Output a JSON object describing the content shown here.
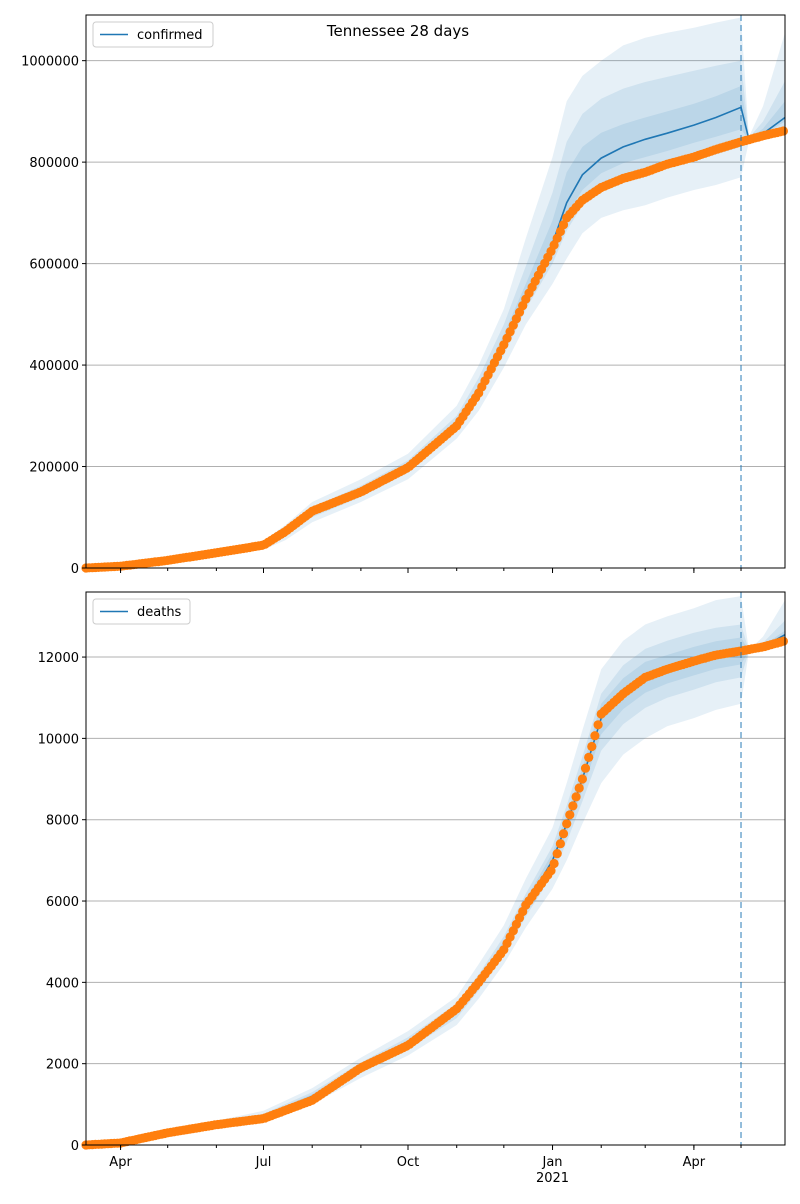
{
  "figure_title": "Tennessee 28 days",
  "colors": {
    "model": "#1f77b4",
    "observed": "#ff7f0e",
    "band": "#1f77b4",
    "grid": "#b0b0b0",
    "forecast_line": "#1f77b4"
  },
  "chart_data": [
    {
      "type": "line",
      "title": "Tennessee 28 days",
      "legend_label": "confirmed",
      "legend_position": "top-left",
      "grid": "horizontal",
      "xlim": [
        "2020-03-10",
        "2021-05-29"
      ],
      "ylim": [
        0,
        1090000
      ],
      "yticks": [
        0,
        200000,
        400000,
        600000,
        800000,
        1000000
      ],
      "ytick_labels": [
        "0",
        "200000",
        "400000",
        "600000",
        "800000",
        "1000000"
      ],
      "xticks": [
        "2020-04-01",
        "2020-07-01",
        "2020-10-01",
        "2021-01-01",
        "2021-04-01"
      ],
      "xtick_labels": [],
      "forecast_start": "2021-05-01",
      "model_x": [
        "2020-03-10",
        "2020-04-01",
        "2020-05-01",
        "2020-06-01",
        "2020-07-01",
        "2020-07-15",
        "2020-08-01",
        "2020-09-01",
        "2020-10-01",
        "2020-11-01",
        "2020-11-15",
        "2020-12-01",
        "2020-12-15",
        "2021-01-01",
        "2021-01-10",
        "2021-01-20",
        "2021-02-01",
        "2021-02-15",
        "2021-03-01",
        "2021-03-15",
        "2021-04-01",
        "2021-04-15",
        "2021-05-01",
        "2021-05-06",
        "2021-05-15",
        "2021-05-29"
      ],
      "model_y": [
        0,
        4000,
        15000,
        30000,
        45000,
        70000,
        110000,
        150000,
        200000,
        285000,
        350000,
        445000,
        535000,
        640000,
        720000,
        775000,
        808000,
        830000,
        845000,
        857000,
        873000,
        888000,
        908000,
        845000,
        856000,
        888000
      ],
      "bands": [
        {
          "level": "outer",
          "lower": [
            0,
            3000,
            12000,
            24000,
            36000,
            55000,
            90000,
            130000,
            175000,
            255000,
            310000,
            395000,
            480000,
            560000,
            610000,
            660000,
            690000,
            705000,
            715000,
            730000,
            745000,
            755000,
            770000,
            840000,
            848000,
            860000
          ],
          "upper": [
            0,
            5000,
            18000,
            36000,
            54000,
            85000,
            130000,
            175000,
            225000,
            320000,
            400000,
            510000,
            650000,
            810000,
            920000,
            970000,
            1000000,
            1030000,
            1045000,
            1055000,
            1065000,
            1075000,
            1085000,
            850000,
            910000,
            1055000
          ]
        },
        {
          "level": "middle",
          "lower": [
            0,
            3500,
            13500,
            27000,
            40000,
            62000,
            100000,
            140000,
            188000,
            270000,
            330000,
            420000,
            510000,
            600000,
            665000,
            715000,
            745000,
            765000,
            775000,
            790000,
            805000,
            815000,
            830000,
            842000,
            852000,
            872000
          ],
          "upper": [
            0,
            4500,
            16500,
            33000,
            50000,
            78000,
            120000,
            162000,
            212000,
            300000,
            375000,
            480000,
            595000,
            740000,
            840000,
            895000,
            925000,
            945000,
            958000,
            968000,
            980000,
            990000,
            1000000,
            848000,
            880000,
            960000
          ]
        },
        {
          "level": "inner",
          "lower": [
            0,
            3800,
            14500,
            28500,
            42500,
            66000,
            105000,
            145000,
            194000,
            278000,
            340000,
            432000,
            522000,
            620000,
            695000,
            745000,
            778000,
            798000,
            810000,
            822000,
            838000,
            850000,
            865000,
            844000,
            854000,
            880000
          ],
          "upper": [
            0,
            4200,
            15500,
            31500,
            47500,
            74000,
            115000,
            155000,
            206000,
            292000,
            360000,
            460000,
            560000,
            685000,
            780000,
            830000,
            858000,
            875000,
            888000,
            900000,
            915000,
            930000,
            950000,
            846000,
            866000,
            920000
          ]
        }
      ],
      "observed_x": [
        "2020-03-10",
        "2020-04-01",
        "2020-05-01",
        "2020-06-01",
        "2020-07-01",
        "2020-07-15",
        "2020-08-01",
        "2020-09-01",
        "2020-10-01",
        "2020-11-01",
        "2020-11-15",
        "2020-12-01",
        "2020-12-15",
        "2021-01-01",
        "2021-01-10",
        "2021-01-20",
        "2021-02-01",
        "2021-02-15",
        "2021-03-01",
        "2021-03-15",
        "2021-04-01",
        "2021-04-15",
        "2021-05-01",
        "2021-05-15",
        "2021-05-29"
      ],
      "observed_y": [
        0,
        3500,
        15000,
        30000,
        45000,
        72000,
        112000,
        150000,
        198000,
        280000,
        345000,
        440000,
        530000,
        630000,
        690000,
        725000,
        750000,
        768000,
        780000,
        796000,
        810000,
        825000,
        840000,
        852000,
        862000
      ]
    },
    {
      "type": "line",
      "legend_label": "deaths",
      "legend_position": "top-left",
      "grid": "horizontal",
      "xlim": [
        "2020-03-10",
        "2021-05-29"
      ],
      "ylim": [
        0,
        13600
      ],
      "yticks": [
        0,
        2000,
        4000,
        6000,
        8000,
        10000,
        12000
      ],
      "ytick_labels": [
        "0",
        "2000",
        "4000",
        "6000",
        "8000",
        "10000",
        "12000"
      ],
      "xticks": [
        "2020-04-01",
        "2020-07-01",
        "2020-10-01",
        "2021-01-01",
        "2021-04-01"
      ],
      "xtick_labels": [
        "Apr",
        "Jul",
        "Oct",
        "Jan",
        "Apr"
      ],
      "year_label": "2021",
      "forecast_start": "2021-05-01",
      "model_x": [
        "2020-03-10",
        "2020-04-01",
        "2020-05-01",
        "2020-06-01",
        "2020-07-01",
        "2020-08-01",
        "2020-09-01",
        "2020-10-01",
        "2020-11-01",
        "2020-11-15",
        "2020-12-01",
        "2020-12-15",
        "2021-01-01",
        "2021-01-10",
        "2021-01-20",
        "2021-02-01",
        "2021-02-15",
        "2021-03-01",
        "2021-03-15",
        "2021-04-01",
        "2021-04-15",
        "2021-05-01",
        "2021-05-06",
        "2021-05-15",
        "2021-05-29"
      ],
      "model_y": [
        0,
        50,
        300,
        500,
        700,
        1200,
        1900,
        2500,
        3300,
        4000,
        4900,
        5900,
        7000,
        7900,
        9000,
        10500,
        11100,
        11500,
        11700,
        11900,
        12050,
        12150,
        12150,
        12250,
        12550
      ],
      "bands": [
        {
          "level": "outer",
          "lower": [
            0,
            40,
            240,
            400,
            560,
            1000,
            1650,
            2200,
            2950,
            3600,
            4450,
            5350,
            6300,
            7000,
            7900,
            8900,
            9600,
            10000,
            10300,
            10500,
            10700,
            10850,
            12130,
            12180,
            12300
          ],
          "upper": [
            0,
            60,
            360,
            600,
            840,
            1400,
            2150,
            2800,
            3650,
            4450,
            5400,
            6550,
            7800,
            8900,
            10200,
            11700,
            12400,
            12800,
            13000,
            13200,
            13400,
            13500,
            12170,
            12500,
            13400
          ]
        },
        {
          "level": "middle",
          "lower": [
            0,
            45,
            270,
            450,
            630,
            1100,
            1770,
            2350,
            3120,
            3800,
            4670,
            5620,
            6650,
            7450,
            8450,
            9700,
            10350,
            10750,
            11000,
            11200,
            11380,
            11500,
            12140,
            12210,
            12400
          ],
          "upper": [
            0,
            55,
            330,
            550,
            770,
            1300,
            2030,
            2650,
            3480,
            4200,
            5130,
            6180,
            7350,
            8350,
            9550,
            11100,
            11800,
            12200,
            12400,
            12600,
            12720,
            12800,
            12160,
            12350,
            12900
          ]
        },
        {
          "level": "inner",
          "lower": [
            0,
            47,
            285,
            475,
            665,
            1150,
            1840,
            2420,
            3210,
            3900,
            4780,
            5760,
            6820,
            7680,
            8720,
            10100,
            10720,
            11120,
            11350,
            11550,
            11710,
            11820,
            12145,
            12230,
            12470
          ],
          "upper": [
            0,
            53,
            315,
            525,
            735,
            1250,
            1960,
            2580,
            3390,
            4100,
            5020,
            6040,
            7180,
            8120,
            9280,
            10850,
            11480,
            11880,
            12050,
            12250,
            12390,
            12480,
            12155,
            12280,
            12650
          ]
        }
      ],
      "observed_x": [
        "2020-03-10",
        "2020-04-01",
        "2020-05-01",
        "2020-06-01",
        "2020-07-01",
        "2020-08-01",
        "2020-09-01",
        "2020-10-01",
        "2020-11-01",
        "2020-11-15",
        "2020-12-01",
        "2020-12-15",
        "2021-01-01",
        "2021-01-10",
        "2021-01-20",
        "2021-02-01",
        "2021-02-15",
        "2021-03-01",
        "2021-03-15",
        "2021-04-01",
        "2021-04-15",
        "2021-05-01",
        "2021-05-15",
        "2021-05-29"
      ],
      "observed_y": [
        0,
        50,
        300,
        500,
        650,
        1100,
        1900,
        2450,
        3350,
        4000,
        4800,
        5900,
        6800,
        7900,
        9000,
        10600,
        11100,
        11500,
        11700,
        11900,
        12050,
        12150,
        12250,
        12400
      ]
    }
  ]
}
